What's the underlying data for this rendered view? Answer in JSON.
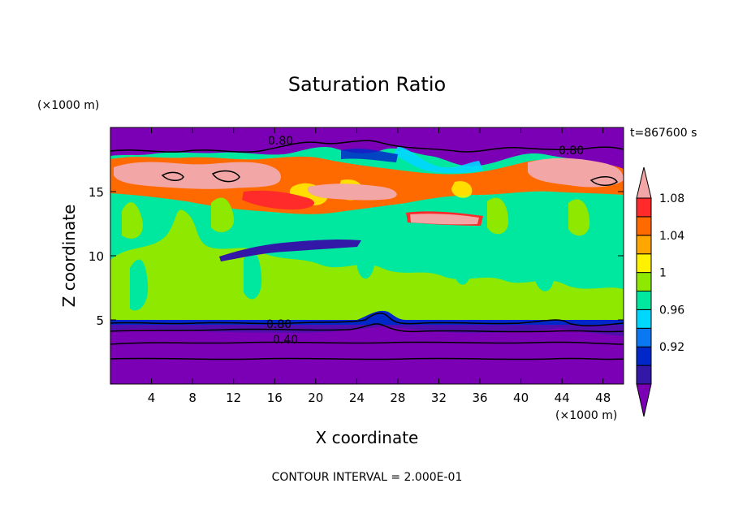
{
  "chart_data": {
    "type": "heatmap",
    "title": "Saturation Ratio",
    "xlabel": "X coordinate",
    "ylabel": "Z coordinate",
    "x_unit": "(×1000 m)",
    "y_unit": "(×1000 m)",
    "time_label": "t=867600 s",
    "footer": "CONTOUR INTERVAL = 2.000E-01",
    "xlim": [
      0,
      50
    ],
    "ylim": [
      0,
      20
    ],
    "x_ticks": [
      "4",
      "8",
      "12",
      "16",
      "20",
      "24",
      "28",
      "32",
      "36",
      "40",
      "44",
      "48"
    ],
    "y_ticks": [
      "5",
      "10",
      "15"
    ],
    "colorbar": {
      "labels": [
        "0.92",
        "0.96",
        "1",
        "1.04",
        "1.08"
      ],
      "colors": [
        "#7b00b5",
        "#3318a8",
        "#0028c8",
        "#0a78f0",
        "#00d7ff",
        "#00e8a0",
        "#8ee800",
        "#fff200",
        "#ffa600",
        "#ff6a00",
        "#ff2a2a",
        "#f2a6a6"
      ]
    },
    "contour_labels": [
      "0.80",
      "0.80",
      "0.80",
      "0.40"
    ]
  }
}
